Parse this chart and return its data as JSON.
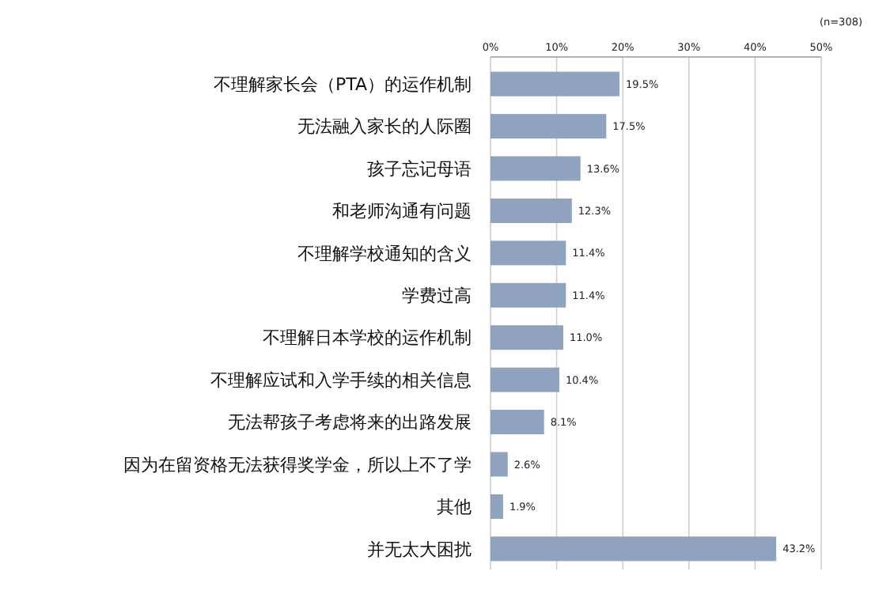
{
  "chart_data": {
    "type": "bar",
    "orientation": "horizontal",
    "categories": [
      "不理解家长会（PTA）的运作机制",
      "无法融入家长的人际圈",
      "孩子忘记母语",
      "和老师沟通有问题",
      "不理解学校通知的含义",
      "学费过高",
      "不理解日本学校的运作机制",
      "不理解应试和入学手续的相关信息",
      "无法帮孩子考虑将来的出路发展",
      "因为在留资格无法获得奖学金，所以上不了学",
      "其他",
      "并无太大困扰"
    ],
    "values": [
      19.5,
      17.5,
      13.6,
      12.3,
      11.4,
      11.4,
      11.0,
      10.4,
      8.1,
      2.6,
      1.9,
      43.2
    ],
    "value_labels": [
      "19.5%",
      "17.5%",
      "13.6%",
      "12.3%",
      "11.4%",
      "11.4%",
      "11.0%",
      "10.4%",
      "8.1%",
      "2.6%",
      "1.9%",
      "43.2%"
    ],
    "color": "#8fa3bf",
    "xlim": [
      0,
      50
    ],
    "xticks": [
      {
        "value": 0,
        "label": "0%"
      },
      {
        "value": 10,
        "label": "10%"
      },
      {
        "value": 20,
        "label": "20%"
      },
      {
        "value": 30,
        "label": "30%"
      },
      {
        "value": 40,
        "label": "40%"
      },
      {
        "value": 50,
        "label": "50%"
      }
    ],
    "grid": "x",
    "annotations": [
      "(n=308)"
    ]
  }
}
